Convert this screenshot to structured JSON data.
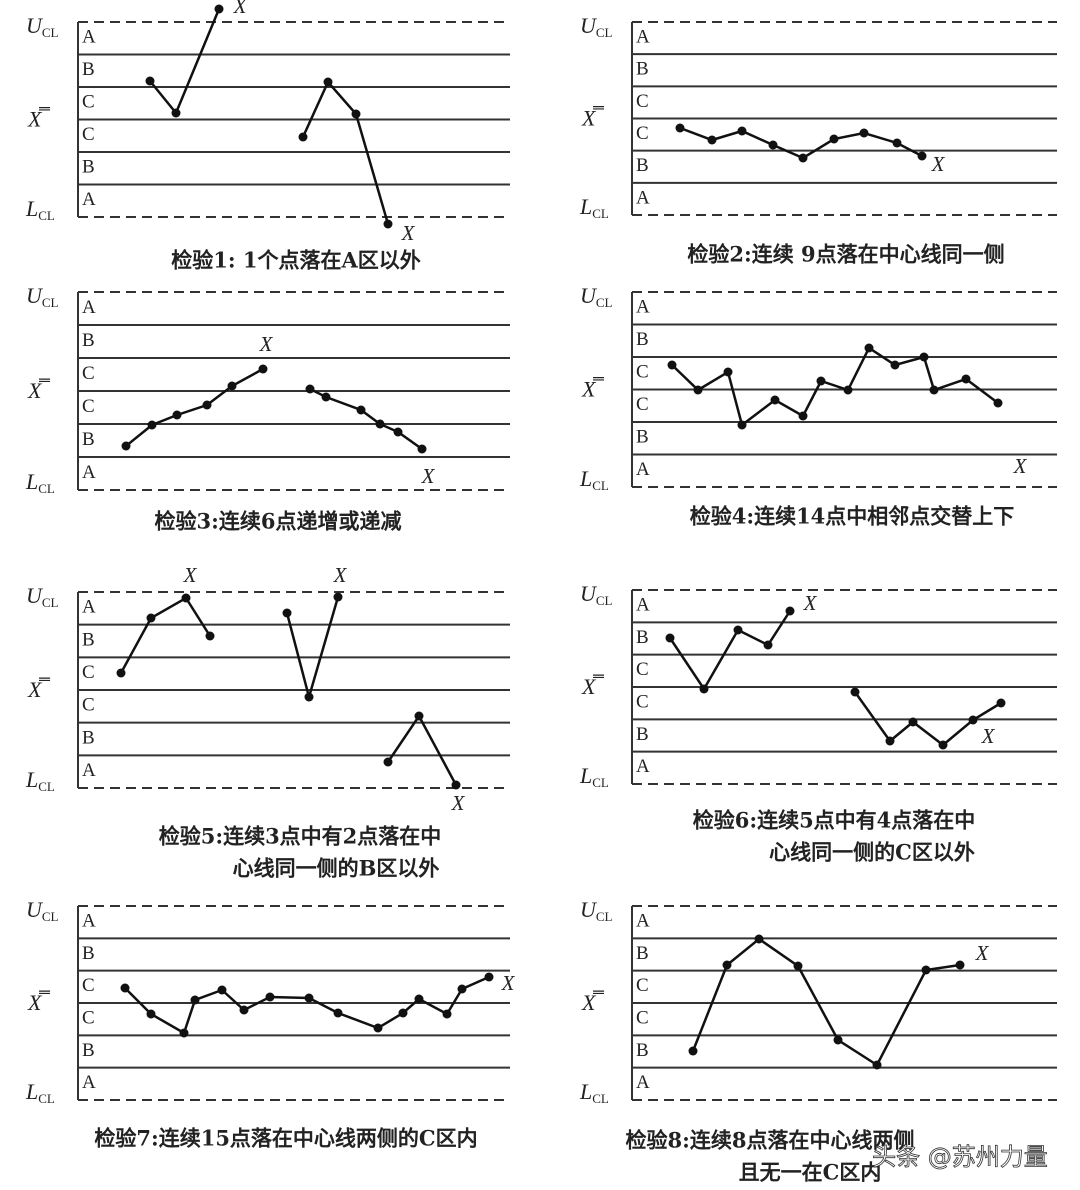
{
  "panels": [
    {
      "ucl": {
        "main": "U",
        "sub": "CL"
      },
      "center": "X̿",
      "lcl": {
        "main": "L",
        "sub": "CL"
      },
      "zones": [
        "A",
        "B",
        "C",
        "C",
        "B",
        "A"
      ],
      "marks": [
        "X",
        "X"
      ],
      "caption": [
        "检验1: 1个点落在A区以外"
      ]
    },
    {
      "ucl": {
        "main": "U",
        "sub": "CL"
      },
      "center": "X̿",
      "lcl": {
        "main": "L",
        "sub": "CL"
      },
      "zones": [
        "A",
        "B",
        "C",
        "C",
        "B",
        "A"
      ],
      "marks": [
        "X"
      ],
      "caption": [
        "检验2:连续 9点落在中心线同一侧"
      ]
    },
    {
      "ucl": {
        "main": "U",
        "sub": "CL"
      },
      "center": "X̿",
      "lcl": {
        "main": "L",
        "sub": "CL"
      },
      "zones": [
        "A",
        "B",
        "C",
        "C",
        "B",
        "A"
      ],
      "marks": [
        "X",
        "X"
      ],
      "caption": [
        "检验3:连续6点递增或递减"
      ]
    },
    {
      "ucl": {
        "main": "U",
        "sub": "CL"
      },
      "center": "X̿",
      "lcl": {
        "main": "L",
        "sub": "CL"
      },
      "zones": [
        "A",
        "B",
        "C",
        "C",
        "B",
        "A"
      ],
      "marks": [
        "X"
      ],
      "caption": [
        "检验4:连续14点中相邻点交替上下"
      ]
    },
    {
      "ucl": {
        "main": "U",
        "sub": "CL"
      },
      "center": "X̿",
      "lcl": {
        "main": "L",
        "sub": "CL"
      },
      "zones": [
        "A",
        "B",
        "C",
        "C",
        "B",
        "A"
      ],
      "marks": [
        "X",
        "X",
        "X"
      ],
      "caption": [
        "检验5:连续3点中有2点落在中",
        "心线同一侧的B区以外"
      ]
    },
    {
      "ucl": {
        "main": "U",
        "sub": "CL"
      },
      "center": "X̿",
      "lcl": {
        "main": "L",
        "sub": "CL"
      },
      "zones": [
        "A",
        "B",
        "C",
        "C",
        "B",
        "A"
      ],
      "marks": [
        "X",
        "X"
      ],
      "caption": [
        "检验6:连续5点中有4点落在中",
        "心线同一侧的C区以外"
      ]
    },
    {
      "ucl": {
        "main": "U",
        "sub": "CL"
      },
      "center": "X̿",
      "lcl": {
        "main": "L",
        "sub": "CL"
      },
      "zones": [
        "A",
        "B",
        "C",
        "C",
        "B",
        "A"
      ],
      "marks": [
        "X"
      ],
      "caption": [
        "检验7:连续15点落在中心线两侧的C区内"
      ]
    },
    {
      "ucl": {
        "main": "U",
        "sub": "CL"
      },
      "center": "X̿",
      "lcl": {
        "main": "L",
        "sub": "CL"
      },
      "zones": [
        "A",
        "B",
        "C",
        "C",
        "B",
        "A"
      ],
      "marks": [
        "X"
      ],
      "caption": [
        "检验8:连续8点落在中心线两侧",
        "且无一在C区内"
      ]
    }
  ],
  "watermark": "头条 @苏州力量"
}
